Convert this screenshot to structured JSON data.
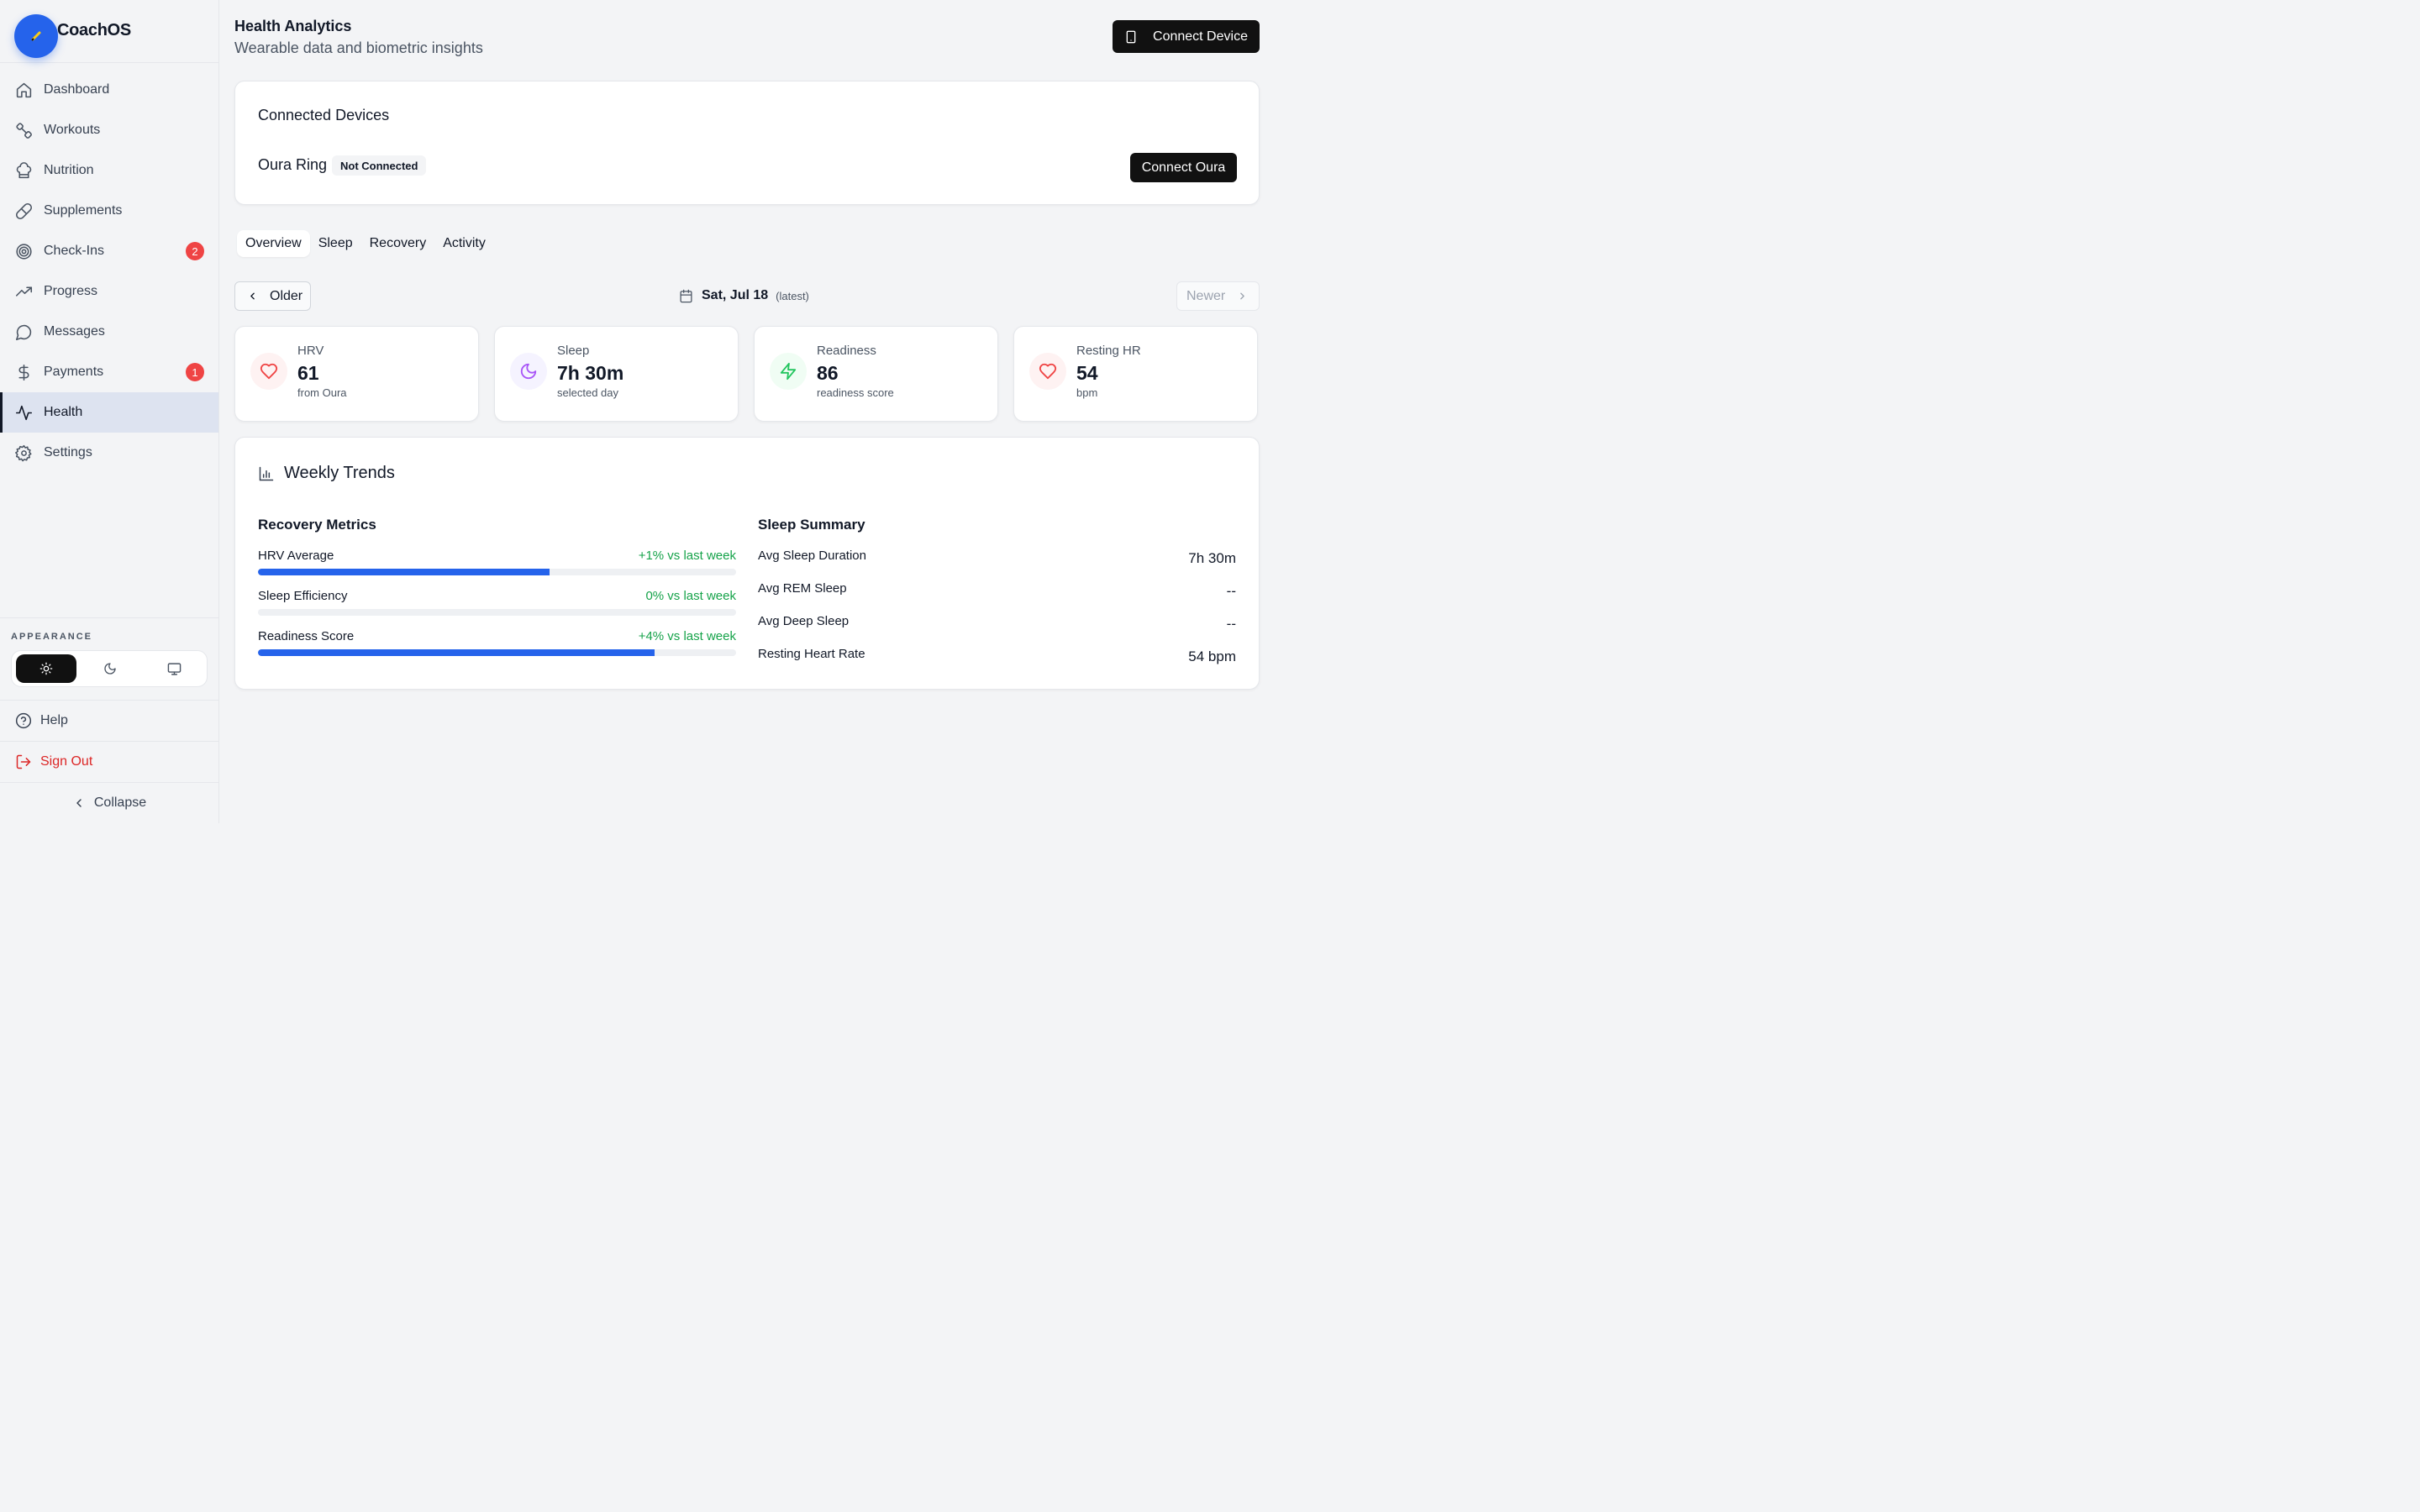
{
  "app": {
    "name": "CoachOS"
  },
  "sidebar": {
    "items": [
      {
        "label": "Dashboard",
        "icon": "home-icon"
      },
      {
        "label": "Workouts",
        "icon": "dumbbell-icon"
      },
      {
        "label": "Nutrition",
        "icon": "chef-hat-icon"
      },
      {
        "label": "Supplements",
        "icon": "pill-icon"
      },
      {
        "label": "Check-Ins",
        "icon": "target-icon",
        "badge": "2"
      },
      {
        "label": "Progress",
        "icon": "trending-up-icon"
      },
      {
        "label": "Messages",
        "icon": "message-icon"
      },
      {
        "label": "Payments",
        "icon": "dollar-icon",
        "badge": "1"
      },
      {
        "label": "Health",
        "icon": "activity-icon",
        "active": true
      },
      {
        "label": "Settings",
        "icon": "gear-icon"
      }
    ],
    "appearance_title": "APPEARANCE",
    "theme_options": [
      "light",
      "dark",
      "system"
    ],
    "theme_selected": "light",
    "help_label": "Help",
    "signout_label": "Sign Out",
    "collapse_label": "Collapse"
  },
  "header": {
    "title": "Health Analytics",
    "subtitle": "Wearable data and biometric insights",
    "connect_device_label": "Connect Device"
  },
  "devices": {
    "title": "Connected Devices",
    "device_name": "Oura Ring",
    "status": "Not Connected",
    "connect_label": "Connect Oura"
  },
  "tabs": [
    "Overview",
    "Sleep",
    "Recovery",
    "Activity"
  ],
  "active_tab": "Overview",
  "date_nav": {
    "older_label": "Older",
    "date": "Sat, Jul 18",
    "latest_tag": "(latest)",
    "newer_label": "Newer"
  },
  "metrics": [
    {
      "label": "HRV",
      "value": "61",
      "sub": "from Oura",
      "icon": "heart-icon",
      "color": "#ef4444",
      "bg": "#fef2f2"
    },
    {
      "label": "Sleep",
      "value": "7h 30m",
      "sub": "selected day",
      "icon": "moon-icon",
      "color": "#a855f7",
      "bg": "#f5f3ff"
    },
    {
      "label": "Readiness",
      "value": "86",
      "sub": "readiness score",
      "icon": "zap-icon",
      "color": "#22c55e",
      "bg": "#f0fdf4"
    },
    {
      "label": "Resting HR",
      "value": "54",
      "sub": "bpm",
      "icon": "heart-icon",
      "color": "#ef4444",
      "bg": "#fef2f2"
    }
  ],
  "trends": {
    "title": "Weekly Trends",
    "recovery_title": "Recovery Metrics",
    "recovery": [
      {
        "label": "HRV Average",
        "change": "+1% vs last week",
        "level": 0.61
      },
      {
        "label": "Sleep Efficiency",
        "change": "0% vs last week",
        "level": 0
      },
      {
        "label": "Readiness Score",
        "change": "+4% vs last week",
        "level": 0.83
      }
    ],
    "sleep_title": "Sleep Summary",
    "sleep": [
      {
        "label": "Avg Sleep Duration",
        "value": "7h 30m"
      },
      {
        "label": "Avg REM Sleep",
        "value": "--"
      },
      {
        "label": "Avg Deep Sleep",
        "value": "--"
      },
      {
        "label": "Resting Heart Rate",
        "value": "54 bpm"
      }
    ]
  },
  "colors": {
    "accent": "#2563eb",
    "success": "#16a34a",
    "danger": "#ef4444"
  }
}
